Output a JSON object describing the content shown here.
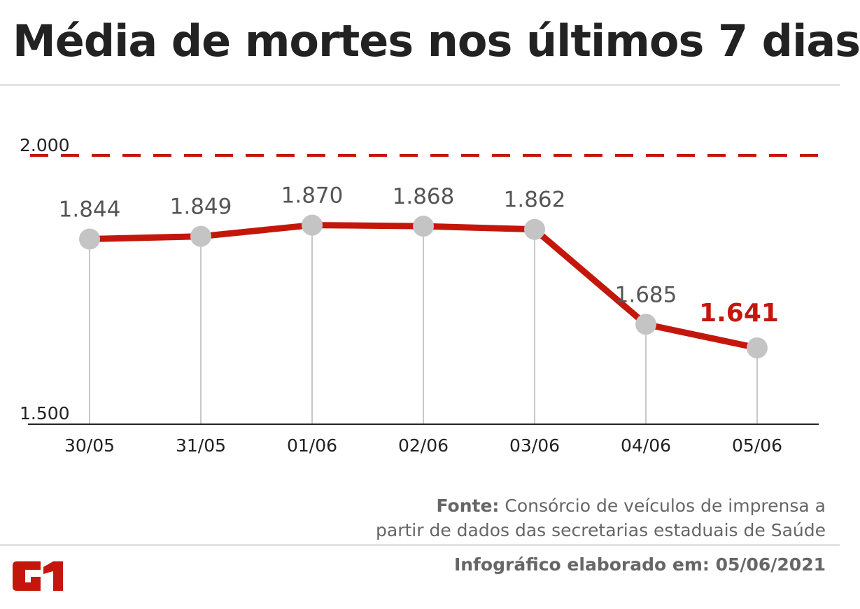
{
  "title": "Média de mortes nos últimos 7 dias",
  "chart_data": {
    "type": "line",
    "title": "Média de mortes nos últimos 7 dias",
    "categories": [
      "30/05",
      "31/05",
      "01/06",
      "02/06",
      "03/06",
      "04/06",
      "05/06"
    ],
    "values": [
      1844,
      1849,
      1870,
      1868,
      1862,
      1685,
      1641
    ],
    "data_labels": [
      "1.844",
      "1.849",
      "1.870",
      "1.868",
      "1.862",
      "1.685",
      "1.641"
    ],
    "ylim": [
      1500,
      2000
    ],
    "y_ticks": [
      {
        "value": 1500,
        "label": "1.500"
      },
      {
        "value": 2000,
        "label": "2.000"
      }
    ],
    "reference_line": {
      "value": 2000,
      "style": "dashed"
    },
    "grid": false,
    "colors": {
      "line": "#c4170c",
      "marker": "#c4c4c4",
      "label": "#555555",
      "highlight_label": "#c4170c"
    }
  },
  "source": {
    "label": "Fonte:",
    "text": " Consórcio de veículos de imprensa a",
    "text2": "partir de dados das secretarias estaduais de Saúde"
  },
  "credit": "Infográfico elaborado em: 05/06/2021",
  "logo": "G1"
}
